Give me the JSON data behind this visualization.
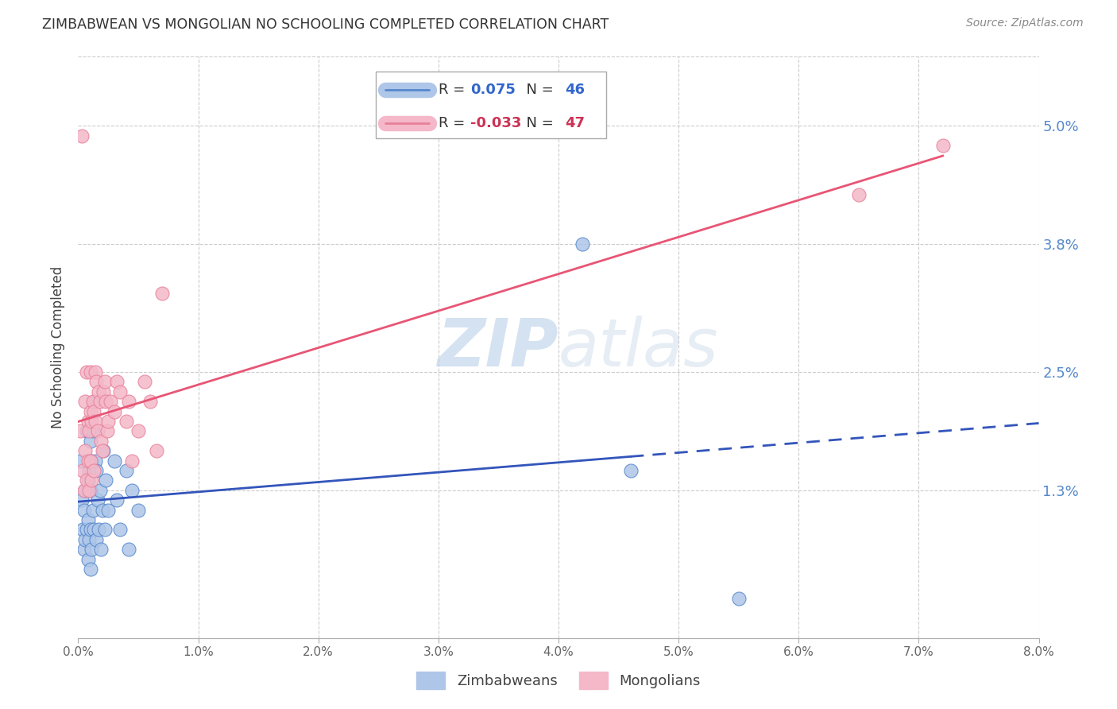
{
  "title": "ZIMBABWEAN VS MONGOLIAN NO SCHOOLING COMPLETED CORRELATION CHART",
  "source": "Source: ZipAtlas.com",
  "ylabel": "No Schooling Completed",
  "xlim": [
    0.0,
    0.08
  ],
  "ylim": [
    -0.002,
    0.057
  ],
  "ytick_values": [
    0.013,
    0.025,
    0.038,
    0.05
  ],
  "ytick_labels": [
    "1.3%",
    "2.5%",
    "3.8%",
    "5.0%"
  ],
  "xtick_values": [
    0.0,
    0.01,
    0.02,
    0.03,
    0.04,
    0.05,
    0.06,
    0.07,
    0.08
  ],
  "xtick_labels": [
    "0.0%",
    "1.0%",
    "2.0%",
    "3.0%",
    "4.0%",
    "5.0%",
    "6.0%",
    "7.0%",
    "8.0%"
  ],
  "blue_face": "#aec6e8",
  "blue_edge": "#5588cc",
  "pink_face": "#f4b8c8",
  "pink_edge": "#e8809a",
  "trend_blue": "#3355bb",
  "trend_pink": "#e85575",
  "grid_color": "#cccccc",
  "watermark_color": "#ddeeff",
  "zim_r": 0.075,
  "zim_n": 46,
  "mon_r": -0.033,
  "mon_n": 47,
  "zim_x": [
    0.0002,
    0.0003,
    0.0004,
    0.0005,
    0.0005,
    0.0006,
    0.0006,
    0.0007,
    0.0007,
    0.0008,
    0.0008,
    0.0008,
    0.0009,
    0.0009,
    0.001,
    0.001,
    0.001,
    0.001,
    0.0011,
    0.0011,
    0.0012,
    0.0012,
    0.0013,
    0.0013,
    0.0014,
    0.0015,
    0.0015,
    0.0016,
    0.0017,
    0.0018,
    0.0019,
    0.002,
    0.0021,
    0.0022,
    0.0023,
    0.0025,
    0.003,
    0.0032,
    0.0035,
    0.004,
    0.0042,
    0.0045,
    0.005,
    0.042,
    0.046,
    0.055
  ],
  "zim_y": [
    0.016,
    0.012,
    0.009,
    0.007,
    0.011,
    0.008,
    0.013,
    0.009,
    0.019,
    0.006,
    0.01,
    0.014,
    0.008,
    0.015,
    0.005,
    0.009,
    0.013,
    0.018,
    0.007,
    0.016,
    0.011,
    0.019,
    0.009,
    0.022,
    0.016,
    0.008,
    0.015,
    0.012,
    0.009,
    0.013,
    0.007,
    0.011,
    0.017,
    0.009,
    0.014,
    0.011,
    0.016,
    0.012,
    0.009,
    0.015,
    0.007,
    0.013,
    0.011,
    0.038,
    0.015,
    0.002
  ],
  "mon_x": [
    0.0002,
    0.0003,
    0.0004,
    0.0005,
    0.0006,
    0.0006,
    0.0007,
    0.0007,
    0.0008,
    0.0008,
    0.0009,
    0.0009,
    0.001,
    0.001,
    0.001,
    0.0011,
    0.0011,
    0.0012,
    0.0013,
    0.0013,
    0.0014,
    0.0014,
    0.0015,
    0.0016,
    0.0017,
    0.0018,
    0.0019,
    0.002,
    0.0021,
    0.0022,
    0.0023,
    0.0024,
    0.0025,
    0.0027,
    0.003,
    0.0032,
    0.0035,
    0.004,
    0.0042,
    0.0045,
    0.005,
    0.0055,
    0.006,
    0.0065,
    0.007,
    0.065,
    0.072
  ],
  "mon_y": [
    0.019,
    0.049,
    0.015,
    0.013,
    0.017,
    0.022,
    0.014,
    0.025,
    0.016,
    0.02,
    0.013,
    0.019,
    0.016,
    0.021,
    0.025,
    0.014,
    0.02,
    0.022,
    0.015,
    0.021,
    0.02,
    0.025,
    0.024,
    0.019,
    0.023,
    0.022,
    0.018,
    0.017,
    0.023,
    0.024,
    0.022,
    0.019,
    0.02,
    0.022,
    0.021,
    0.024,
    0.023,
    0.02,
    0.022,
    0.016,
    0.019,
    0.024,
    0.022,
    0.017,
    0.033,
    0.043,
    0.048
  ]
}
